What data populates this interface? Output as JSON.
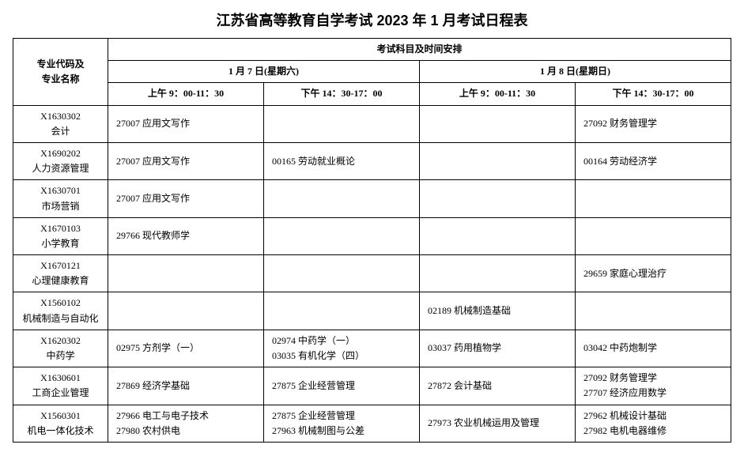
{
  "title": "江苏省高等教育自学考试 2023 年 1 月考试日程表",
  "header": {
    "majorLabel": "专业代码及\n专业名称",
    "scheduleLabel": "考试科目及时间安排",
    "day1": "1 月 7 日(星期六)",
    "day2": "1 月 8 日(星期日)",
    "slotAM": "上午 9：00-11：30",
    "slotPM": "下午 14：30-17：00"
  },
  "rows": [
    {
      "code": "X1630302",
      "name": "会计",
      "d1am": [
        "27007 应用文写作"
      ],
      "d1pm": [],
      "d2am": [],
      "d2pm": [
        "27092 财务管理学"
      ]
    },
    {
      "code": "X1690202",
      "name": "人力资源管理",
      "d1am": [
        "27007 应用文写作"
      ],
      "d1pm": [
        "00165 劳动就业概论"
      ],
      "d2am": [],
      "d2pm": [
        "00164 劳动经济学"
      ]
    },
    {
      "code": "X1630701",
      "name": "市场营销",
      "d1am": [
        "27007 应用文写作"
      ],
      "d1pm": [],
      "d2am": [],
      "d2pm": []
    },
    {
      "code": "X1670103",
      "name": "小学教育",
      "d1am": [
        "29766 现代教师学"
      ],
      "d1pm": [],
      "d2am": [],
      "d2pm": []
    },
    {
      "code": "X1670121",
      "name": "心理健康教育",
      "d1am": [],
      "d1pm": [],
      "d2am": [],
      "d2pm": [
        "29659 家庭心理治疗"
      ]
    },
    {
      "code": "X1560102",
      "name": "机械制造与自动化",
      "d1am": [],
      "d1pm": [],
      "d2am": [
        "02189 机械制造基础"
      ],
      "d2pm": []
    },
    {
      "code": "X1620302",
      "name": "中药学",
      "d1am": [
        "02975 方剂学（一）"
      ],
      "d1pm": [
        "02974 中药学（一）",
        "03035 有机化学（四）"
      ],
      "d2am": [
        "03037 药用植物学"
      ],
      "d2pm": [
        "03042 中药炮制学"
      ]
    },
    {
      "code": "X1630601",
      "name": "工商企业管理",
      "d1am": [
        "27869 经济学基础"
      ],
      "d1pm": [
        "27875 企业经营管理"
      ],
      "d2am": [
        "27872 会计基础"
      ],
      "d2pm": [
        "27092 财务管理学",
        "27707 经济应用数学"
      ]
    },
    {
      "code": "X1560301",
      "name": "机电一体化技术",
      "d1am": [
        "27966 电工与电子技术",
        "27980 农村供电"
      ],
      "d1pm": [
        "27875 企业经营管理",
        "27963 机械制图与公差"
      ],
      "d2am": [
        "27973 农业机械运用及管理"
      ],
      "d2pm": [
        "27962 机械设计基础",
        "27982 电机电器维修"
      ]
    }
  ],
  "style": {
    "borderColor": "#000000",
    "backgroundColor": "#ffffff",
    "titleFontSize": 18,
    "cellFontSize": 12
  }
}
